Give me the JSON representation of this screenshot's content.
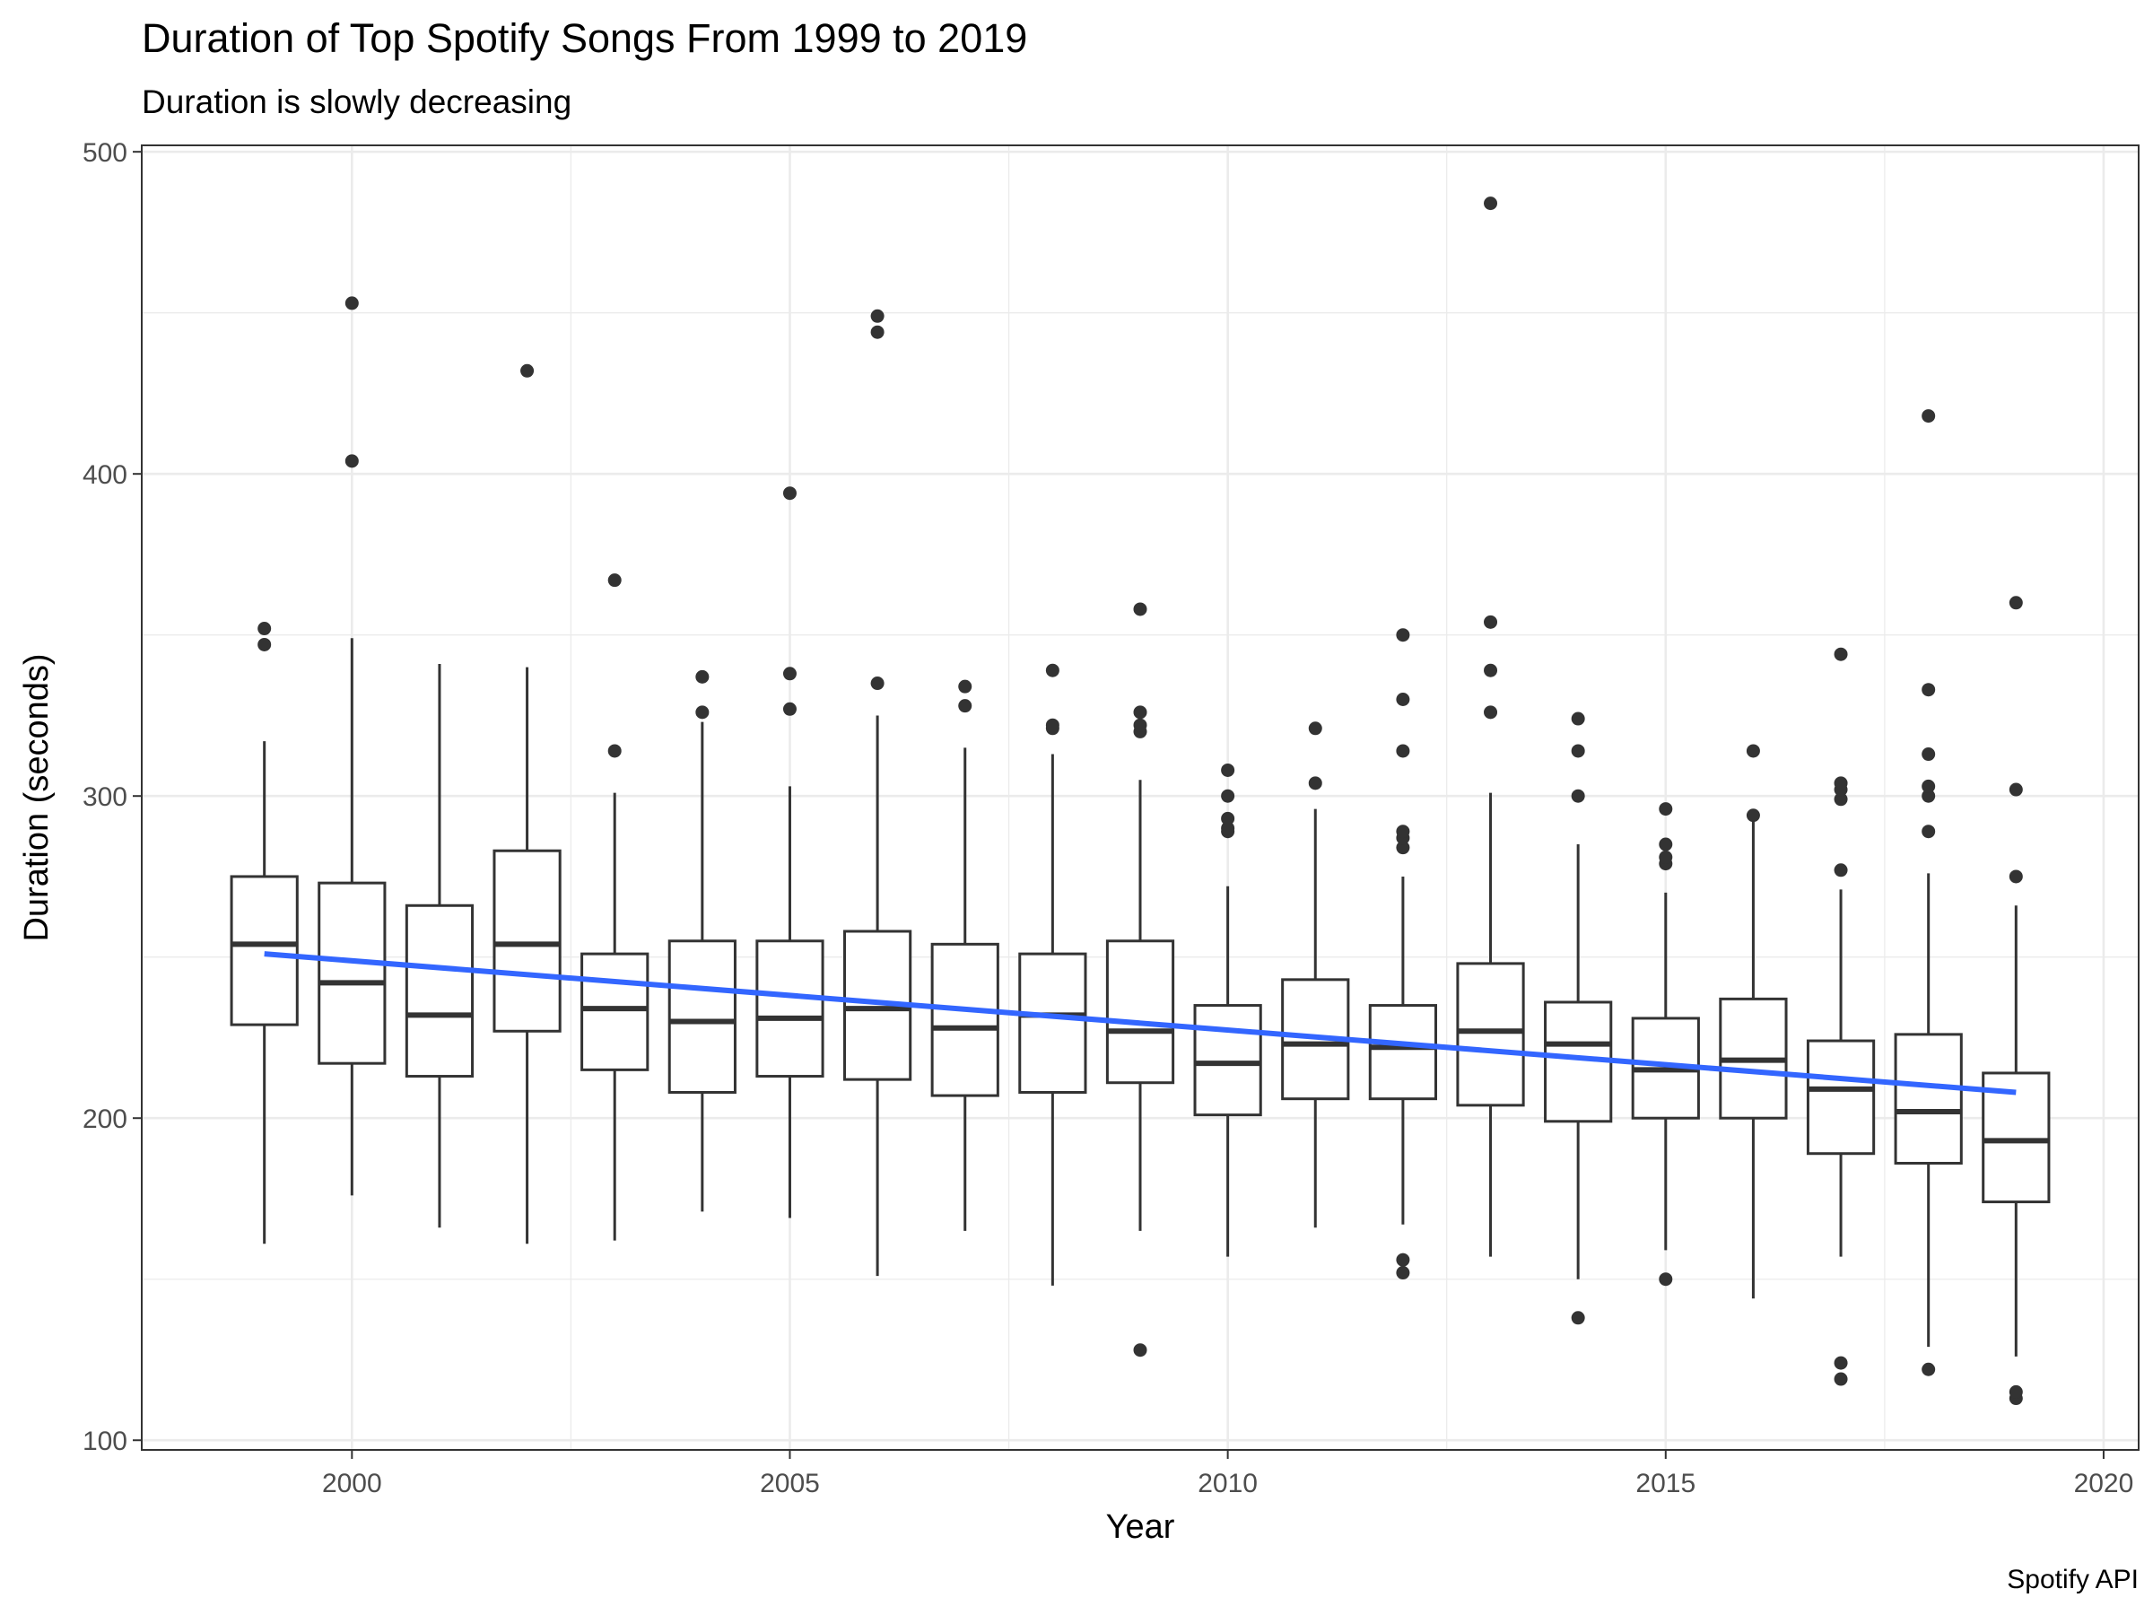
{
  "chart_data": {
    "type": "boxplot",
    "title": "Duration of Top Spotify Songs From 1999 to 2019",
    "subtitle": "Duration is slowly decreasing",
    "xlabel": "Year",
    "ylabel": "Duration (seconds)",
    "caption": "Spotify API",
    "xlim": [
      1997.6,
      2020.4
    ],
    "ylim": [
      97,
      502
    ],
    "x_ticks": [
      2000,
      2005,
      2010,
      2015,
      2020
    ],
    "y_ticks": [
      100,
      200,
      300,
      400,
      500
    ],
    "grid": true,
    "boxes": [
      {
        "year": 1999,
        "lower_whisker": 161,
        "q1": 229,
        "median": 254,
        "q3": 275,
        "upper_whisker": 317,
        "outliers": [
          347,
          352
        ]
      },
      {
        "year": 2000,
        "lower_whisker": 176,
        "q1": 217,
        "median": 242,
        "q3": 273,
        "upper_whisker": 349,
        "outliers": [
          404,
          453
        ]
      },
      {
        "year": 2001,
        "lower_whisker": 166,
        "q1": 213,
        "median": 232,
        "q3": 266,
        "upper_whisker": 341,
        "outliers": []
      },
      {
        "year": 2002,
        "lower_whisker": 161,
        "q1": 227,
        "median": 254,
        "q3": 283,
        "upper_whisker": 340,
        "outliers": [
          432
        ]
      },
      {
        "year": 2003,
        "lower_whisker": 162,
        "q1": 215,
        "median": 234,
        "q3": 251,
        "upper_whisker": 301,
        "outliers": [
          314,
          367
        ]
      },
      {
        "year": 2004,
        "lower_whisker": 171,
        "q1": 208,
        "median": 230,
        "q3": 255,
        "upper_whisker": 323,
        "outliers": [
          326,
          337
        ]
      },
      {
        "year": 2005,
        "lower_whisker": 169,
        "q1": 213,
        "median": 231,
        "q3": 255,
        "upper_whisker": 303,
        "outliers": [
          327,
          338,
          394
        ]
      },
      {
        "year": 2006,
        "lower_whisker": 151,
        "q1": 212,
        "median": 234,
        "q3": 258,
        "upper_whisker": 325,
        "outliers": [
          335,
          444,
          449
        ]
      },
      {
        "year": 2007,
        "lower_whisker": 165,
        "q1": 207,
        "median": 228,
        "q3": 254,
        "upper_whisker": 315,
        "outliers": [
          328,
          334
        ]
      },
      {
        "year": 2008,
        "lower_whisker": 148,
        "q1": 208,
        "median": 232,
        "q3": 251,
        "upper_whisker": 313,
        "outliers": [
          321,
          322,
          339
        ]
      },
      {
        "year": 2009,
        "lower_whisker": 165,
        "q1": 211,
        "median": 227,
        "q3": 255,
        "upper_whisker": 305,
        "outliers": [
          128,
          320,
          322,
          326,
          358
        ]
      },
      {
        "year": 2010,
        "lower_whisker": 157,
        "q1": 201,
        "median": 217,
        "q3": 235,
        "upper_whisker": 272,
        "outliers": [
          289,
          290,
          293,
          300,
          308
        ]
      },
      {
        "year": 2011,
        "lower_whisker": 166,
        "q1": 206,
        "median": 223,
        "q3": 243,
        "upper_whisker": 296,
        "outliers": [
          304,
          321
        ]
      },
      {
        "year": 2012,
        "lower_whisker": 167,
        "q1": 206,
        "median": 222,
        "q3": 235,
        "upper_whisker": 275,
        "outliers": [
          152,
          156,
          284,
          287,
          289,
          314,
          330,
          350
        ]
      },
      {
        "year": 2013,
        "lower_whisker": 157,
        "q1": 204,
        "median": 227,
        "q3": 248,
        "upper_whisker": 301,
        "outliers": [
          326,
          339,
          354,
          484
        ]
      },
      {
        "year": 2014,
        "lower_whisker": 150,
        "q1": 199,
        "median": 223,
        "q3": 236,
        "upper_whisker": 285,
        "outliers": [
          138,
          300,
          314,
          324
        ]
      },
      {
        "year": 2015,
        "lower_whisker": 159,
        "q1": 200,
        "median": 215,
        "q3": 231,
        "upper_whisker": 270,
        "outliers": [
          150,
          279,
          281,
          285,
          296
        ]
      },
      {
        "year": 2016,
        "lower_whisker": 144,
        "q1": 200,
        "median": 218,
        "q3": 237,
        "upper_whisker": 293,
        "outliers": [
          294,
          314
        ]
      },
      {
        "year": 2017,
        "lower_whisker": 157,
        "q1": 189,
        "median": 209,
        "q3": 224,
        "upper_whisker": 271,
        "outliers": [
          119,
          124,
          277,
          299,
          302,
          304,
          344
        ]
      },
      {
        "year": 2018,
        "lower_whisker": 129,
        "q1": 186,
        "median": 202,
        "q3": 226,
        "upper_whisker": 276,
        "outliers": [
          122,
          289,
          300,
          303,
          313,
          333,
          418
        ]
      },
      {
        "year": 2019,
        "lower_whisker": 126,
        "q1": 174,
        "median": 193,
        "q3": 214,
        "upper_whisker": 266,
        "outliers": [
          113,
          115,
          275,
          302,
          360
        ]
      }
    ],
    "trend_line": {
      "method": "linear",
      "color": "#3366ff",
      "x": [
        1999,
        2019
      ],
      "y": [
        251,
        208
      ]
    },
    "colors": {
      "box_stroke": "#333333",
      "outlier": "#333333",
      "grid": "#ebebeb",
      "panel_border": "#333333"
    }
  }
}
